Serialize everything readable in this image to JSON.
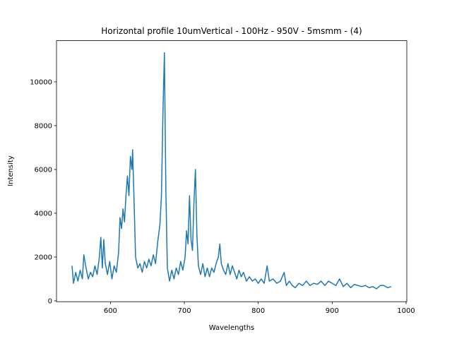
{
  "chart_data": {
    "type": "line",
    "title": "Horizontal profile 10umVertical - 100Hz - 950V - 5msmm - (4)",
    "x_label": "Wavelengths",
    "y_label": "Intensity",
    "xlim": [
      527,
      1001
    ],
    "ylim": [
      -40,
      11880
    ],
    "xticks": [
      600,
      700,
      800,
      900,
      1000
    ],
    "yticks": [
      0,
      2000,
      4000,
      6000,
      8000,
      10000
    ],
    "grid": false,
    "series": [
      {
        "color": "#1f77b4",
        "x": [
          548,
          550,
          553,
          556,
          559,
          562,
          564,
          567,
          570,
          573,
          576,
          579,
          582,
          585,
          587,
          589,
          591,
          593,
          596,
          599,
          602,
          605,
          608,
          611,
          613,
          615,
          617,
          619,
          621,
          623,
          625,
          627,
          629,
          630,
          632,
          634,
          637,
          640,
          643,
          646,
          649,
          652,
          655,
          658,
          661,
          664,
          667,
          669,
          671,
          673,
          675,
          677,
          680,
          683,
          686,
          689,
          692,
          695,
          698,
          701,
          703,
          705,
          707,
          709,
          711,
          713,
          715,
          717,
          719,
          722,
          725,
          728,
          731,
          734,
          737,
          740,
          743,
          746,
          748,
          750,
          753,
          756,
          759,
          762,
          765,
          768,
          771,
          774,
          777,
          780,
          784,
          788,
          792,
          796,
          800,
          804,
          808,
          812,
          815,
          820,
          825,
          830,
          835,
          838,
          842,
          846,
          850,
          855,
          860,
          865,
          870,
          875,
          880,
          885,
          890,
          895,
          900,
          905,
          910,
          915,
          920,
          925,
          930,
          935,
          940,
          945,
          950,
          955,
          960,
          965,
          970,
          975,
          980
        ],
        "values": [
          1600,
          800,
          1300,
          900,
          1400,
          1000,
          2100,
          1500,
          1000,
          1300,
          1100,
          1600,
          1200,
          2000,
          2900,
          1500,
          2800,
          1700,
          1200,
          1800,
          1000,
          1600,
          1300,
          2200,
          3800,
          3300,
          4200,
          3600,
          4800,
          5700,
          4800,
          6600,
          6000,
          6900,
          4500,
          2000,
          1500,
          1700,
          1300,
          1800,
          1500,
          1900,
          1600,
          2100,
          1700,
          2700,
          3500,
          4800,
          8500,
          11330,
          5000,
          1500,
          900,
          1400,
          1000,
          1500,
          1200,
          1800,
          1400,
          2000,
          3200,
          2600,
          4800,
          2800,
          2300,
          4500,
          6000,
          3000,
          1600,
          1200,
          1700,
          1100,
          1500,
          1100,
          1500,
          1300,
          1700,
          2000,
          2600,
          1700,
          1400,
          1200,
          1700,
          1200,
          1600,
          1300,
          1000,
          1400,
          1100,
          1300,
          900,
          1100,
          900,
          1000,
          800,
          1000,
          800,
          1600,
          900,
          1000,
          800,
          900,
          1300,
          700,
          900,
          700,
          600,
          800,
          700,
          900,
          700,
          800,
          750,
          900,
          700,
          900,
          800,
          700,
          1000,
          650,
          800,
          600,
          750,
          700,
          650,
          700,
          600,
          650,
          550,
          700,
          700,
          600,
          650
        ]
      }
    ]
  }
}
